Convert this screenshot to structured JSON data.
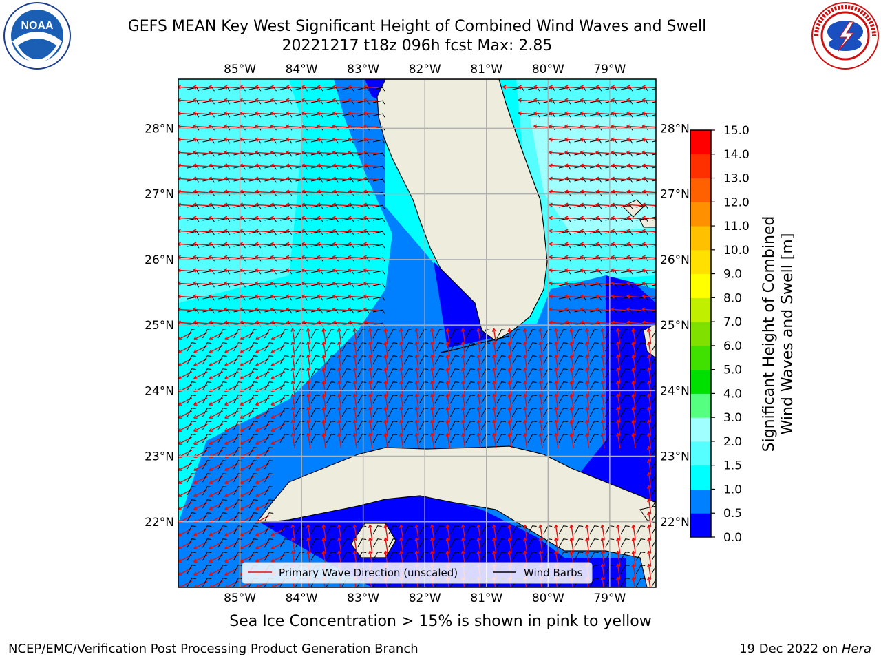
{
  "header": {
    "title_line1": "GEFS MEAN Key West Significant Height of Combined Wind Waves and Swell",
    "title_line2": "20221217 t18z 096h fcst   Max: 2.85",
    "noaa_logo_text": "NOAA",
    "noaa_ring_text": "NATIONAL OCEANIC AND ATMOSPHERIC ADMINISTRATION · U.S. DEPARTMENT OF COMMERCE",
    "nws_ring_text": "NATIONAL WEATHER SERVICE"
  },
  "map": {
    "lon_range": [
      -86.0,
      -78.25
    ],
    "lat_range": [
      21.0,
      28.75
    ],
    "lon_labels": [
      "85°W",
      "84°W",
      "83°W",
      "82°W",
      "81°W",
      "80°W",
      "79°W"
    ],
    "lat_labels": [
      "28°N",
      "27°N",
      "26°N",
      "25°N",
      "24°N",
      "23°N",
      "22°N"
    ],
    "grid": true,
    "land_color": "#eeecdc",
    "legend": {
      "position": "bottom-center",
      "items": [
        {
          "label": "Primary Wave Direction (unscaled)",
          "color": "#e01010"
        },
        {
          "label": "Wind Barbs",
          "color": "#000000"
        }
      ]
    }
  },
  "colorbar": {
    "label": "Significant Height of Combined Wind Waves and Swell [m]",
    "tick_labels": [
      "15.0",
      "14.0",
      "13.0",
      "12.0",
      "11.0",
      "10.0",
      "9.0",
      "8.0",
      "7.0",
      "6.0",
      "5.0",
      "4.0",
      "3.0",
      "2.0",
      "1.5",
      "1.0",
      "0.5",
      "0.0"
    ],
    "levels": [
      0.0,
      0.5,
      1.0,
      1.5,
      2.0,
      3.0,
      4.0,
      5.0,
      6.0,
      7.0,
      8.0,
      9.0,
      10.0,
      11.0,
      12.0,
      13.0,
      14.0,
      15.0
    ],
    "colors": [
      "#0000ff",
      "#0080ff",
      "#00ffff",
      "#55ffff",
      "#a0ffff",
      "#55ff80",
      "#00e000",
      "#40e000",
      "#80e000",
      "#c0f000",
      "#ffff00",
      "#ffe000",
      "#ffc000",
      "#ff9000",
      "#ff6000",
      "#ff3000",
      "#ff0000"
    ]
  },
  "footer": {
    "sea_ice_note": "Sea Ice Concentration > 15% is shown in pink to yellow",
    "credit": "NCEP/EMC/Verification Post Processing Product Generation Branch",
    "date_text": "19 Dec 2022 on ",
    "machine": "Hera"
  }
}
